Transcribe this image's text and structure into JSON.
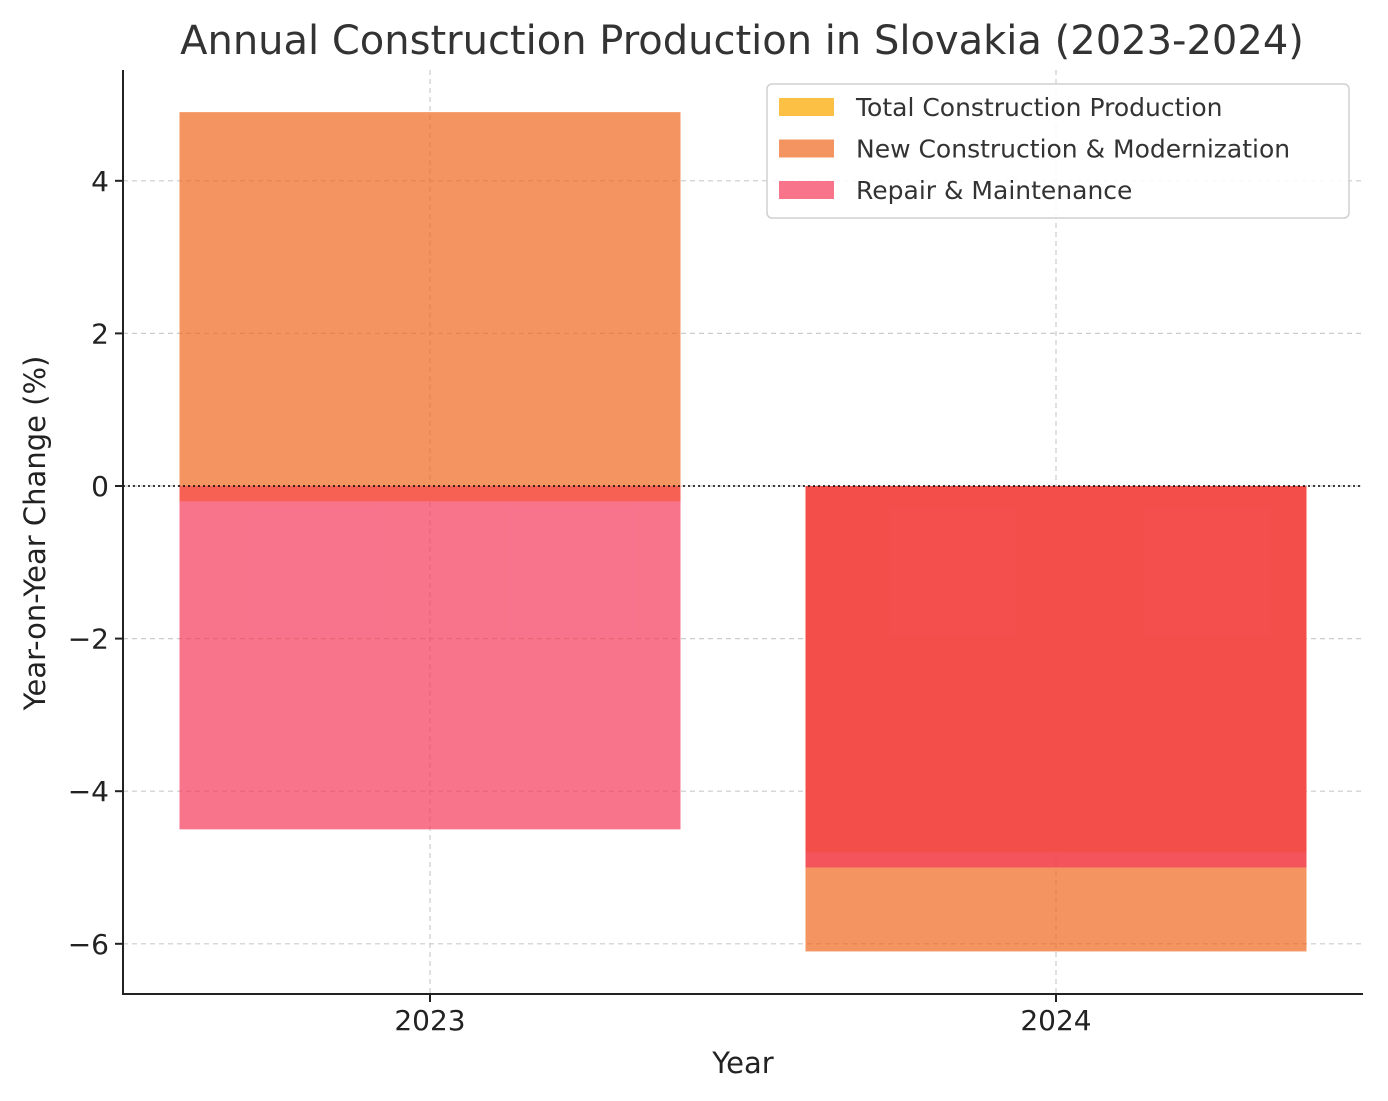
{
  "chart_data": {
    "type": "bar",
    "title": "Annual Construction Production in Slovakia (2023-2024)",
    "xlabel": "Year",
    "ylabel": "Year-on-Year Change (%)",
    "categories": [
      "2023",
      "2024"
    ],
    "ylim": [
      -6.65,
      5.45
    ],
    "yticks": [
      -6,
      -4,
      -2,
      0,
      2,
      4
    ],
    "ytick_labels": [
      "−6",
      "−4",
      "−2",
      "0",
      "2",
      "4"
    ],
    "grid": true,
    "legend_position": "top-right",
    "series": [
      {
        "name": "Total Construction Production",
        "values": [
          -0.2,
          -4.8
        ],
        "color": "#fcc045",
        "opacity": 1.0
      },
      {
        "name": "New Construction & Modernization",
        "values": [
          4.9,
          -6.1
        ],
        "color": "#f0661e",
        "opacity": 0.7
      },
      {
        "name": "Repair & Maintenance",
        "values": [
          -4.5,
          -5.0
        ],
        "color": "#f4395a",
        "opacity": 0.7
      }
    ]
  }
}
